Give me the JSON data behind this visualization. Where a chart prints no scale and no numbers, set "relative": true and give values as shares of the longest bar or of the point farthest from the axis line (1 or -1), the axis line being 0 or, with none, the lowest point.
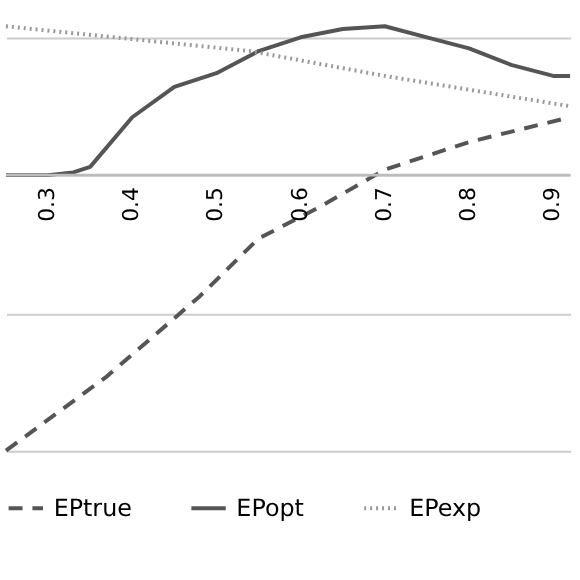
{
  "chart_data": {
    "type": "line",
    "relative": true,
    "xlim": [
      0.25,
      0.92
    ],
    "xticks": [
      0.3,
      0.4,
      0.5,
      0.6,
      0.7,
      0.8,
      0.9
    ],
    "grid": "y",
    "legend": "bottom",
    "tick_labels": "x",
    "x": [
      0.25,
      0.3,
      0.33,
      0.35,
      0.4,
      0.45,
      0.5,
      0.55,
      0.6,
      0.65,
      0.7,
      0.75,
      0.8,
      0.85,
      0.9,
      0.92
    ],
    "series": [
      {
        "name": "EPtrue",
        "color": "#555555",
        "line_style": "dashed",
        "x": [
          0.25,
          0.37,
          0.48,
          0.55,
          0.62,
          0.7,
          0.8,
          0.92
        ],
        "values": [
          -1,
          -0.73,
          -0.44,
          -0.23,
          -0.12,
          0.02,
          0.12,
          0.21
        ]
      },
      {
        "name": "EPopt",
        "color": "#555555",
        "line_style": "solid",
        "values": [
          0,
          0,
          0.01,
          0.03,
          0.21,
          0.32,
          0.37,
          0.45,
          0.5,
          0.53,
          0.54,
          0.5,
          0.46,
          0.4,
          0.36,
          0.36
        ]
      },
      {
        "name": "EPexp",
        "color": "#999999",
        "line_style": "dotted",
        "x": [
          0.25,
          0.54,
          0.7,
          0.92
        ],
        "values": [
          0.54,
          0.45,
          0.36,
          0.25
        ]
      }
    ]
  }
}
